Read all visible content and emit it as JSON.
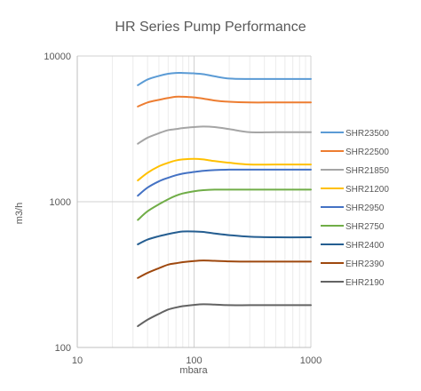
{
  "chart_data": {
    "type": "line",
    "title": "HR Series Pump Performance",
    "xlabel": "mbara",
    "ylabel": "m3/h",
    "x_scale": "log",
    "y_scale": "log",
    "xlim": [
      10,
      1000
    ],
    "ylim": [
      100,
      10000
    ],
    "x_ticks": [
      "10",
      "100",
      "1000"
    ],
    "y_ticks": [
      "100",
      "1000",
      "10000"
    ],
    "grid": "vertical minor and major gridlines, horizontal major gridlines",
    "legend_position": "right",
    "x": [
      33,
      40,
      50,
      60,
      70,
      80,
      100,
      120,
      150,
      200,
      300,
      500,
      1000
    ],
    "series": [
      {
        "name": "SHR23500",
        "color": "#5B9BD5",
        "values": [
          6300,
          6900,
          7300,
          7550,
          7650,
          7650,
          7600,
          7500,
          7250,
          7000,
          6950,
          6950,
          6950
        ]
      },
      {
        "name": "SHR22500",
        "color": "#ED7D31",
        "values": [
          4500,
          4800,
          5000,
          5150,
          5250,
          5250,
          5200,
          5100,
          4950,
          4850,
          4800,
          4800,
          4800
        ]
      },
      {
        "name": "SHR21850",
        "color": "#A5A5A5",
        "values": [
          2500,
          2750,
          2950,
          3100,
          3150,
          3200,
          3250,
          3280,
          3250,
          3150,
          3000,
          3000,
          3000
        ]
      },
      {
        "name": "SHR21200",
        "color": "#FFC000",
        "values": [
          1400,
          1580,
          1750,
          1850,
          1920,
          1950,
          1970,
          1950,
          1900,
          1850,
          1800,
          1800,
          1800
        ]
      },
      {
        "name": "SHR2950",
        "color": "#4472C4",
        "values": [
          1100,
          1250,
          1380,
          1460,
          1520,
          1560,
          1600,
          1630,
          1650,
          1660,
          1660,
          1660,
          1660
        ]
      },
      {
        "name": "SHR2750",
        "color": "#70AD47",
        "values": [
          750,
          860,
          960,
          1040,
          1100,
          1140,
          1180,
          1200,
          1210,
          1210,
          1210,
          1210,
          1210
        ]
      },
      {
        "name": "SHR2400",
        "color": "#255E91",
        "values": [
          510,
          550,
          580,
          600,
          615,
          625,
          625,
          620,
          605,
          590,
          575,
          570,
          570
        ]
      },
      {
        "name": "EHR2390",
        "color": "#9E480E",
        "values": [
          300,
          325,
          350,
          370,
          378,
          385,
          392,
          395,
          393,
          390,
          388,
          388,
          388
        ]
      },
      {
        "name": "EHR2190",
        "color": "#636363",
        "values": [
          140,
          155,
          170,
          182,
          188,
          192,
          196,
          198,
          197,
          195,
          195,
          195,
          195
        ]
      }
    ]
  }
}
